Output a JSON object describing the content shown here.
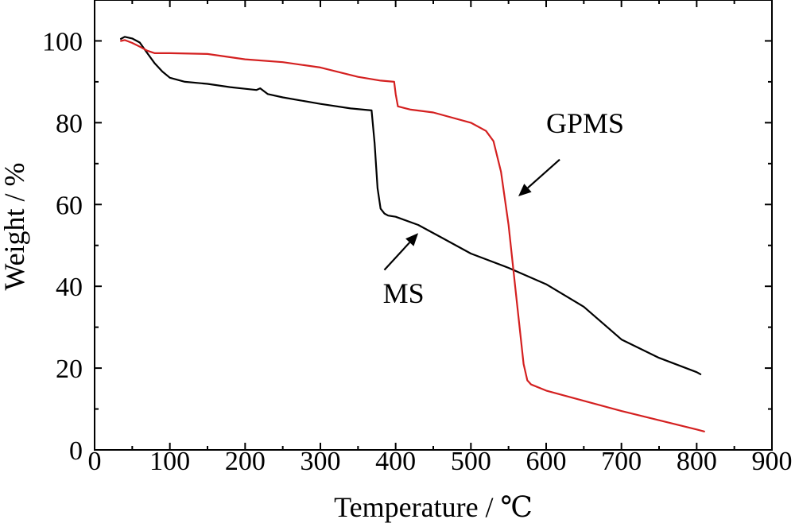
{
  "chart_data": {
    "type": "line",
    "xlabel": "Temperature / ℃",
    "ylabel": "Weight / %",
    "xlim": [
      0,
      900
    ],
    "ylim": [
      0,
      110
    ],
    "xticks": [
      0,
      100,
      200,
      300,
      400,
      500,
      600,
      700,
      800,
      900
    ],
    "yticks": [
      0,
      20,
      40,
      60,
      80,
      100
    ],
    "grid": false,
    "legend": "none",
    "series": [
      {
        "name": "MS",
        "color": "#000000",
        "x": [
          35,
          40,
          50,
          60,
          70,
          80,
          90,
          100,
          120,
          150,
          180,
          200,
          215,
          220,
          230,
          250,
          300,
          340,
          368,
          372,
          376,
          380,
          385,
          390,
          400,
          430,
          460,
          500,
          550,
          600,
          650,
          700,
          750,
          800,
          805
        ],
        "y": [
          100.5,
          101.0,
          100.6,
          99.6,
          97.0,
          94.5,
          92.5,
          91.0,
          90.0,
          89.5,
          88.7,
          88.3,
          88.0,
          88.4,
          87.0,
          86.2,
          84.6,
          83.5,
          83.0,
          75.0,
          64.0,
          59.0,
          57.8,
          57.3,
          57.0,
          55.0,
          52.0,
          48.0,
          44.5,
          40.5,
          35.0,
          27.0,
          22.5,
          19.0,
          18.5
        ]
      },
      {
        "name": "GPMS",
        "color": "#d42020",
        "x": [
          35,
          40,
          50,
          60,
          70,
          80,
          100,
          150,
          200,
          250,
          300,
          350,
          380,
          398,
          400,
          403,
          420,
          450,
          500,
          520,
          530,
          540,
          550,
          560,
          570,
          575,
          580,
          600,
          700,
          800,
          810
        ],
        "y": [
          100.0,
          100.2,
          99.5,
          98.6,
          97.6,
          97.0,
          97.0,
          96.8,
          95.5,
          94.8,
          93.5,
          91.2,
          90.3,
          90.0,
          87.0,
          84.0,
          83.2,
          82.5,
          80.0,
          78.0,
          75.5,
          68.0,
          55.0,
          38.0,
          21.0,
          17.0,
          16.0,
          14.5,
          9.5,
          5.0,
          4.5
        ]
      }
    ],
    "annotations": [
      {
        "text": "GPMS",
        "x": 600,
        "y": 77.5,
        "arrow_tail": [
          618,
          71
        ],
        "arrow_head": [
          563,
          62
        ]
      },
      {
        "text": "MS",
        "x": 383,
        "y": 36,
        "arrow_tail": [
          385,
          44
        ],
        "arrow_head": [
          430,
          53
        ]
      }
    ]
  }
}
